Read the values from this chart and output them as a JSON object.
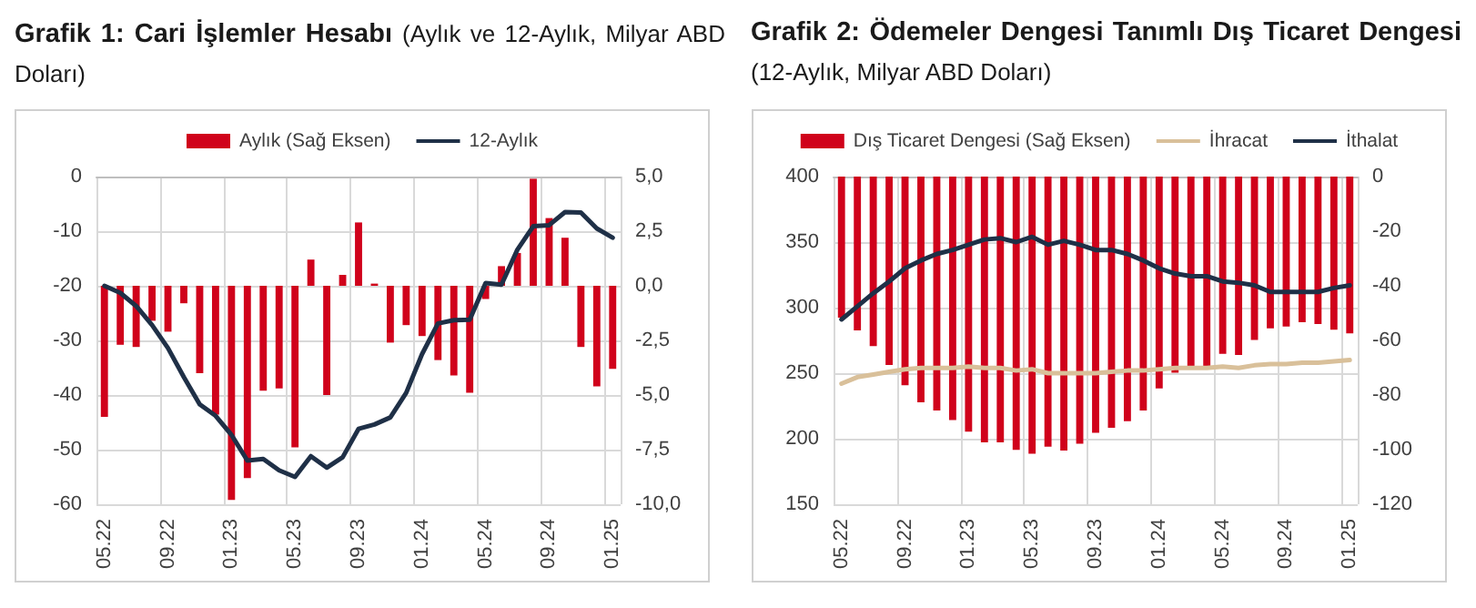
{
  "chart_data": [
    {
      "type": "bar",
      "title": "Grafik 1: Cari İşlemler Hesabı",
      "subtitle": "(Aylık ve 12-Aylık, Milyar ABD Doları)",
      "categories": [
        "05.22",
        null,
        null,
        null,
        "09.22",
        null,
        null,
        null,
        "01.23",
        null,
        null,
        null,
        "05.23",
        null,
        null,
        null,
        "09.23",
        null,
        null,
        null,
        "01.24",
        null,
        null,
        null,
        "05.24",
        null,
        null,
        null,
        "09.24",
        null,
        null,
        null,
        "01.25"
      ],
      "series": [
        {
          "name": "Aylık (Sağ Eksen)",
          "axis": "y2",
          "color": "#d0021b",
          "values": [
            -6.0,
            -2.7,
            -2.8,
            -1.6,
            -2.1,
            -0.8,
            -4.0,
            -5.9,
            -9.8,
            -8.8,
            -4.8,
            -4.7,
            -7.4,
            1.2,
            -5.0,
            0.5,
            2.9,
            0.1,
            -2.6,
            -1.8,
            -2.3,
            -3.4,
            -4.1,
            -4.9,
            -0.6,
            0.9,
            1.5,
            4.9,
            3.1,
            2.2,
            -2.8,
            -4.6,
            -3.8
          ]
        },
        {
          "name": "12-Aylık",
          "type": "line",
          "color": "#1f3047",
          "values": [
            -20,
            -21.3,
            -23.7,
            -27.2,
            -31.4,
            -36.7,
            -41.7,
            -43.8,
            -47.3,
            -52,
            -51.7,
            -53.8,
            -55,
            -51.2,
            -53.3,
            -51.4,
            -46.2,
            -45.4,
            -44.1,
            -39.6,
            -32.5,
            -26.9,
            -26.3,
            -26.2,
            -19.5,
            -19.8,
            -13.4,
            -9.1,
            -8.9,
            -6.5,
            -6.6,
            -9.5,
            -11.2
          ]
        }
      ],
      "ylim": [
        -60,
        0
      ],
      "yticks": [
        -60,
        -50,
        -40,
        -30,
        -20,
        -10,
        0
      ],
      "y2lim": [
        -10,
        5
      ],
      "y2ticks": [
        {
          "value": -10,
          "label": "-10,0"
        },
        {
          "value": -7.5,
          "label": "-7,5"
        },
        {
          "value": -5,
          "label": "-5,0"
        },
        {
          "value": -2.5,
          "label": "-2,5"
        },
        {
          "value": 0,
          "label": "0,0"
        },
        {
          "value": 2.5,
          "label": "2,5"
        },
        {
          "value": 5,
          "label": "5,0"
        }
      ],
      "grid": true,
      "legend": "top",
      "marker": "none"
    },
    {
      "type": "bar",
      "title": "Grafik 2: Ödemeler Dengesi Tanımlı Dış Ticaret Dengesi",
      "subtitle": "(12-Aylık, Milyar ABD Doları)",
      "categories": [
        "05.22",
        null,
        null,
        null,
        "09.22",
        null,
        null,
        null,
        "01.23",
        null,
        null,
        null,
        "05.23",
        null,
        null,
        null,
        "09.23",
        null,
        null,
        null,
        "01.24",
        null,
        null,
        null,
        "05.24",
        null,
        null,
        null,
        "09.24",
        null,
        null,
        null,
        "01.25"
      ],
      "series": [
        {
          "name": "Dış Ticaret Dengesi (Sağ Eksen)",
          "axis": "y2",
          "color": "#d0021b",
          "values": [
            -51.7,
            -56.3,
            -62.1,
            -69.0,
            -76.4,
            -82.7,
            -85.7,
            -89.2,
            -93.4,
            -97.3,
            -97.3,
            -100.1,
            -101.5,
            -98.9,
            -100.3,
            -97.8,
            -93.8,
            -92.0,
            -89.6,
            -85.7,
            -77.6,
            -71.8,
            -70.0,
            -70.2,
            -64.9,
            -65.3,
            -59.8,
            -55.6,
            -54.9,
            -53.3,
            -54.0,
            -56.1,
            -57.4
          ]
        },
        {
          "name": "İhracat",
          "type": "line",
          "color": "#d9c09a",
          "values": [
            242,
            247,
            249,
            251,
            253,
            254,
            254,
            254,
            255,
            254,
            254,
            252,
            253,
            250,
            250,
            250,
            250,
            251,
            252,
            252,
            253,
            254,
            254,
            254,
            255,
            254,
            256,
            257,
            257,
            258,
            258,
            259,
            260
          ]
        },
        {
          "name": "İthalat",
          "type": "line",
          "color": "#1f3047",
          "values": [
            291,
            301,
            311,
            320,
            330,
            336,
            341,
            344,
            348,
            352,
            353,
            350,
            354,
            348,
            351,
            348,
            344,
            344,
            341,
            336,
            330,
            326,
            324,
            324,
            320,
            319,
            317,
            312,
            312,
            312,
            312,
            315,
            317
          ]
        }
      ],
      "ylim": [
        150,
        400
      ],
      "yticks": [
        150,
        200,
        250,
        300,
        350,
        400
      ],
      "y2lim": [
        -120,
        0
      ],
      "y2ticks": [
        -120,
        -100,
        -80,
        -60,
        -40,
        -20,
        0
      ],
      "grid": true,
      "legend": "top",
      "marker": "none"
    }
  ]
}
